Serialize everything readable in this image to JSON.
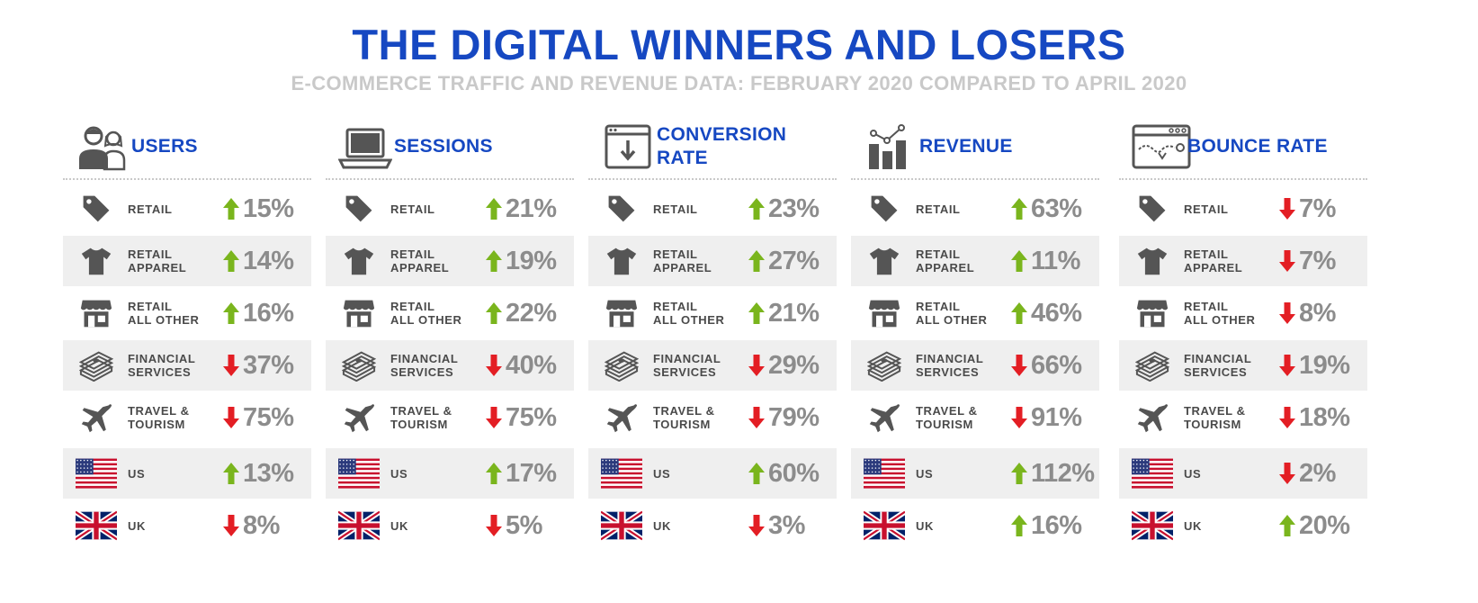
{
  "title": "THE DIGITAL WINNERS AND LOSERS",
  "subtitle": "E-COMMERCE TRAFFIC AND REVENUE DATA: FEBRUARY 2020 COMPARED TO APRIL 2020",
  "colors": {
    "title": "#1648c2",
    "subtitle": "#c9c9c9",
    "up": "#7ab51d",
    "down": "#e31e24",
    "value": "#8c8c8c",
    "icon": "#555555"
  },
  "row_labels": [
    "RETAIL",
    "RETAIL\nAPPAREL",
    "RETAIL\nALL OTHER",
    "FINANCIAL\nSERVICES",
    "TRAVEL &\nTOURISM",
    "US",
    "UK"
  ],
  "row_icons": [
    "price-tag-icon",
    "tshirt-icon",
    "storefront-icon",
    "money-stack-icon",
    "airplane-icon",
    "us-flag-icon",
    "uk-flag-icon"
  ],
  "columns": [
    {
      "title": "USERS",
      "icon": "users-icon",
      "rows": [
        {
          "dir": "up",
          "value": "15%"
        },
        {
          "dir": "up",
          "value": "14%"
        },
        {
          "dir": "up",
          "value": "16%"
        },
        {
          "dir": "down",
          "value": "37%"
        },
        {
          "dir": "down",
          "value": "75%"
        },
        {
          "dir": "up",
          "value": "13%"
        },
        {
          "dir": "down",
          "value": "8%"
        }
      ]
    },
    {
      "title": "SESSIONS",
      "icon": "laptop-icon",
      "rows": [
        {
          "dir": "up",
          "value": "21%"
        },
        {
          "dir": "up",
          "value": "19%"
        },
        {
          "dir": "up",
          "value": "22%"
        },
        {
          "dir": "down",
          "value": "40%"
        },
        {
          "dir": "down",
          "value": "75%"
        },
        {
          "dir": "up",
          "value": "17%"
        },
        {
          "dir": "down",
          "value": "5%"
        }
      ]
    },
    {
      "title": "CONVERSION\nRATE",
      "icon": "download-window-icon",
      "rows": [
        {
          "dir": "up",
          "value": "23%"
        },
        {
          "dir": "up",
          "value": "27%"
        },
        {
          "dir": "up",
          "value": "21%"
        },
        {
          "dir": "down",
          "value": "29%"
        },
        {
          "dir": "down",
          "value": "79%"
        },
        {
          "dir": "up",
          "value": "60%"
        },
        {
          "dir": "down",
          "value": "3%"
        }
      ]
    },
    {
      "title": "REVENUE",
      "icon": "bar-chart-icon",
      "rows": [
        {
          "dir": "up",
          "value": "63%"
        },
        {
          "dir": "up",
          "value": "11%"
        },
        {
          "dir": "up",
          "value": "46%"
        },
        {
          "dir": "down",
          "value": "66%"
        },
        {
          "dir": "down",
          "value": "91%"
        },
        {
          "dir": "up",
          "value": "112%"
        },
        {
          "dir": "up",
          "value": "16%"
        }
      ]
    },
    {
      "title": "BOUNCE RATE",
      "icon": "browser-path-icon",
      "rows": [
        {
          "dir": "down",
          "value": "7%"
        },
        {
          "dir": "down",
          "value": "7%"
        },
        {
          "dir": "down",
          "value": "8%"
        },
        {
          "dir": "down",
          "value": "19%"
        },
        {
          "dir": "down",
          "value": "18%"
        },
        {
          "dir": "down",
          "value": "2%"
        },
        {
          "dir": "up",
          "value": "20%"
        }
      ]
    }
  ]
}
